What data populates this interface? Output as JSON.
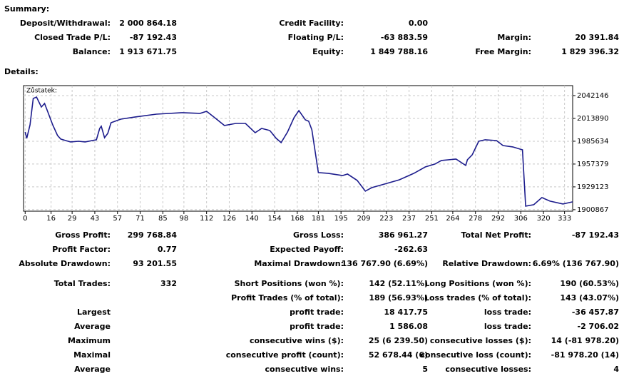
{
  "summary": {
    "title": "Summary:",
    "rows": [
      [
        [
          "Deposit/Withdrawal:",
          "2 000 864.18"
        ],
        [
          "Credit Facility:",
          "0.00"
        ],
        null
      ],
      [
        [
          "Closed Trade P/L:",
          "-87 192.43"
        ],
        [
          "Floating P/L:",
          "-63 883.59"
        ],
        [
          "Margin:",
          "20 391.84"
        ]
      ],
      [
        [
          "Balance:",
          "1 913 671.75"
        ],
        [
          "Equity:",
          "1 849 788.16"
        ],
        [
          "Free Margin:",
          "1 829 396.32"
        ]
      ]
    ]
  },
  "details": {
    "title": "Details:",
    "rows": [
      [
        [
          "Gross Profit:",
          "299 768.84"
        ],
        [
          "Gross Loss:",
          "386 961.27"
        ],
        [
          "Total Net Profit:",
          "-87 192.43"
        ]
      ],
      [
        [
          "Profit Factor:",
          "0.77"
        ],
        [
          "Expected Payoff:",
          "-262.63"
        ],
        null
      ],
      [
        [
          "Absolute Drawdown:",
          "93 201.55"
        ],
        [
          "Maximal Drawdown:",
          "136 767.90 (6.69%)"
        ],
        [
          "Relative Drawdown:",
          "6.69% (136 767.90)"
        ]
      ],
      [
        [
          "Total Trades:",
          "332"
        ],
        [
          "Short Positions (won %):",
          "142 (52.11%)"
        ],
        [
          "Long Positions (won %):",
          "190 (60.53%)"
        ]
      ],
      [
        null,
        [
          "Profit Trades (% of total):",
          "189 (56.93%)"
        ],
        [
          "Loss trades (% of total):",
          "143 (43.07%)"
        ]
      ],
      [
        [
          "Largest",
          null
        ],
        [
          "profit trade:",
          "18 417.75"
        ],
        [
          "loss trade:",
          "-36 457.87"
        ]
      ],
      [
        [
          "Average",
          null
        ],
        [
          "profit trade:",
          "1 586.08"
        ],
        [
          "loss trade:",
          "-2 706.02"
        ]
      ],
      [
        [
          "Maximum",
          null
        ],
        [
          "consecutive wins ($):",
          "25 (6 239.50)"
        ],
        [
          "consecutive losses ($):",
          "14 (-81 978.20)"
        ]
      ],
      [
        [
          "Maximal",
          null
        ],
        [
          "consecutive profit (count):",
          "52 678.44 (6)"
        ],
        [
          "consecutive loss (count):",
          "-81 978.20 (14)"
        ]
      ],
      [
        [
          "Average",
          null
        ],
        [
          "consecutive wins:",
          "5"
        ],
        [
          "consecutive losses:",
          "4"
        ]
      ]
    ]
  },
  "chart_data": {
    "type": "line",
    "legend": "Zůstatek:",
    "x": [
      0,
      1,
      3,
      5,
      7,
      10,
      12,
      14,
      17,
      20,
      22,
      25,
      28,
      33,
      37,
      44,
      46,
      47,
      49,
      51,
      53,
      59,
      68,
      81,
      97,
      108,
      112,
      117,
      123,
      130,
      136,
      142,
      146,
      151,
      155,
      158,
      162,
      166,
      169,
      173,
      175,
      177,
      181,
      187,
      196,
      199,
      205,
      210,
      214,
      222,
      231,
      240,
      247,
      253,
      257,
      266,
      272,
      273,
      276,
      280,
      284,
      291,
      295,
      301,
      307,
      309,
      314,
      319,
      324,
      332,
      338
    ],
    "series": [
      {
        "name": "Zůstatek",
        "color": "#1c1c8c",
        "values": [
          1997100,
          1989200,
          2005900,
          2038600,
          2040400,
          2028000,
          2032400,
          2021800,
          2005900,
          1992700,
          1988300,
          1986500,
          1984800,
          1985600,
          1984800,
          1987400,
          2001500,
          2004200,
          1990000,
          1995300,
          2008600,
          2013000,
          2015700,
          2019200,
          2021000,
          2020100,
          2022700,
          2014800,
          2005100,
          2007700,
          2007700,
          1996200,
          2001500,
          1998900,
          1989200,
          1983900,
          1997100,
          2014800,
          2023600,
          2012100,
          2010400,
          1999800,
          1946800,
          1945900,
          1943200,
          1945000,
          1937100,
          1923800,
          1928200,
          1932700,
          1937900,
          1945900,
          1953800,
          1957400,
          1961800,
          1963600,
          1955600,
          1962700,
          1968900,
          1985600,
          1987400,
          1986500,
          1980300,
          1978600,
          1975000,
          1905300,
          1907000,
          1915900,
          1911500,
          1907900,
          1910600
        ]
      }
    ],
    "xlim": [
      -1,
      338
    ],
    "ylim": [
      1899000,
      2054500
    ],
    "xticks": [
      0,
      16,
      29,
      43,
      57,
      71,
      85,
      98,
      112,
      126,
      140,
      154,
      168,
      181,
      195,
      209,
      223,
      237,
      251,
      264,
      278,
      292,
      306,
      320,
      333
    ],
    "yticks": [
      2042146,
      2013890,
      1985634,
      1957379,
      1929123,
      1900867
    ],
    "grid": true
  }
}
